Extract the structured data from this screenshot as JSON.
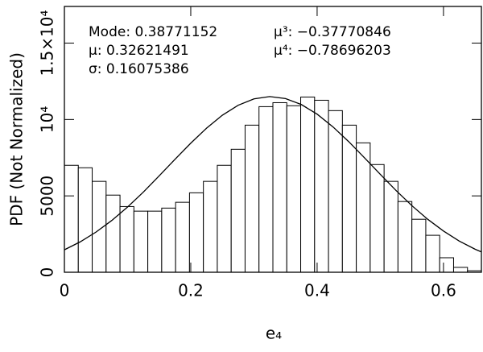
{
  "chart_data": {
    "type": "histogram",
    "xlabel": "e₄",
    "ylabel": "PDF (Not Normalized)",
    "annotations": [
      "Mode: 0.38771152",
      "μ: 0.32621491",
      "σ: 0.16075386",
      "μ³: −0.37770846",
      "μ⁴: −0.78696203"
    ],
    "bins": [
      0,
      0.022,
      0.044,
      0.066,
      0.088,
      0.11,
      0.132,
      0.154,
      0.176,
      0.198,
      0.22,
      0.242,
      0.264,
      0.286,
      0.308,
      0.33,
      0.352,
      0.374,
      0.396,
      0.418,
      0.44,
      0.462,
      0.484,
      0.506,
      0.528,
      0.55,
      0.572,
      0.594,
      0.616,
      0.638,
      0.66
    ],
    "values": [
      7000,
      6840,
      5950,
      5050,
      4300,
      4000,
      4000,
      4200,
      4580,
      5200,
      5950,
      7000,
      8050,
      9630,
      10840,
      11100,
      10900,
      11470,
      11260,
      10580,
      9630,
      8470,
      7050,
      5950,
      4630,
      3470,
      2420,
      950,
      320,
      100
    ],
    "color": "#ffffff",
    "curve": {
      "type": "line",
      "color": "#000000",
      "x": [
        0,
        0.025,
        0.05,
        0.075,
        0.1,
        0.125,
        0.15,
        0.175,
        0.2,
        0.225,
        0.25,
        0.275,
        0.3,
        0.325,
        0.35,
        0.375,
        0.4,
        0.425,
        0.45,
        0.475,
        0.5,
        0.525,
        0.55,
        0.575,
        0.6,
        0.625,
        0.65,
        0.66
      ],
      "values": [
        1470,
        1990,
        2630,
        3390,
        4270,
        5250,
        6310,
        7390,
        8450,
        9430,
        10280,
        10930,
        11350,
        11500,
        11370,
        10980,
        10350,
        9520,
        8550,
        7490,
        6410,
        5350,
        4360,
        3470,
        2700,
        2040,
        1510,
        1330
      ]
    },
    "xlim": [
      0,
      0.66
    ],
    "xticks": [
      0,
      0.2,
      0.4,
      0.6
    ],
    "ylim": [
      0,
      17400
    ],
    "yticks": [
      0,
      5000,
      {
        "value": 10000,
        "label": "10⁴"
      },
      {
        "value": 15000,
        "label": "1.5×10⁴"
      }
    ]
  }
}
